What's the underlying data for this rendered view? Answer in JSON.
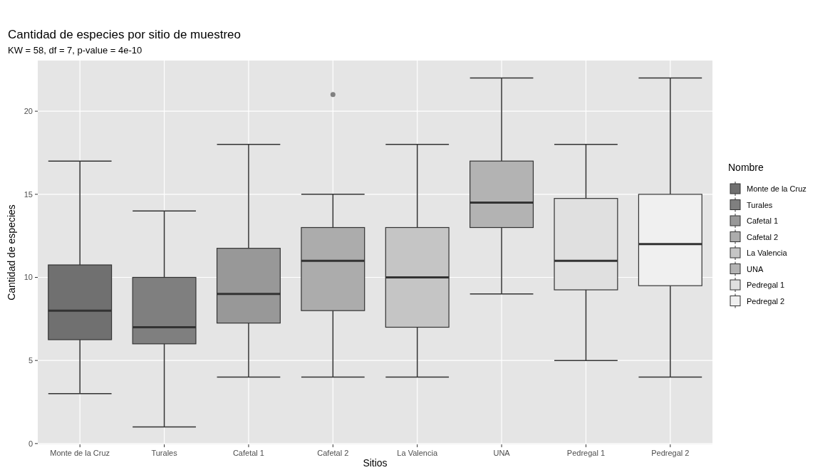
{
  "chart_data": {
    "type": "box",
    "title": "Cantidad de especies por sitio de muestreo",
    "subtitle": "KW = 58, df = 7, p-value = 4e-10",
    "xlabel": "Sitios",
    "ylabel": "Cantidad de especies",
    "legend_title": "Nombre",
    "categories": [
      "Monte de la Cruz",
      "Turales",
      "Cafetal 1",
      "Cafetal 2",
      "La Valencia",
      "UNA",
      "Pedregal 1",
      "Pedregal 2"
    ],
    "series": [
      {
        "name": "Monte de la Cruz",
        "color": "#707070",
        "boxes": [
          {
            "low": 3,
            "q1": 6.25,
            "median": 8,
            "q3": 10.75,
            "high": 17
          },
          null,
          null,
          null,
          null,
          null,
          null,
          null
        ]
      },
      {
        "name": "Turales",
        "color": "#7f7f7f",
        "boxes": [
          null,
          {
            "low": 1,
            "q1": 6,
            "median": 7,
            "q3": 10,
            "high": 14
          },
          null,
          null,
          null,
          null,
          null,
          null
        ]
      },
      {
        "name": "Cafetal 1",
        "color": "#989898",
        "boxes": [
          null,
          null,
          {
            "low": 4,
            "q1": 7.25,
            "median": 9,
            "q3": 11.75,
            "high": 18
          },
          null,
          null,
          null,
          null,
          null
        ]
      },
      {
        "name": "Cafetal 2",
        "color": "#acacac",
        "boxes": [
          null,
          null,
          null,
          {
            "low": 4,
            "q1": 8,
            "median": 11,
            "q3": 13,
            "high": 15,
            "outliers": [
              21
            ]
          },
          null,
          null,
          null,
          null
        ]
      },
      {
        "name": "La Valencia",
        "color": "#c5c5c5",
        "boxes": [
          null,
          null,
          null,
          null,
          {
            "low": 4,
            "q1": 7,
            "median": 10,
            "q3": 13,
            "high": 18
          },
          null,
          null,
          null
        ]
      },
      {
        "name": "UNA",
        "color": "#b3b3b3",
        "boxes": [
          null,
          null,
          null,
          null,
          null,
          {
            "low": 9,
            "q1": 13,
            "median": 14.5,
            "q3": 17,
            "high": 22
          },
          null,
          null
        ]
      },
      {
        "name": "Pedregal 1",
        "color": "#e0e0e0",
        "boxes": [
          null,
          null,
          null,
          null,
          null,
          null,
          {
            "low": 5,
            "q1": 9.25,
            "median": 11,
            "q3": 14.75,
            "high": 18
          },
          null
        ]
      },
      {
        "name": "Pedregal 2",
        "color": "#f0f0f0",
        "boxes": [
          null,
          null,
          null,
          null,
          null,
          null,
          null,
          {
            "low": 4,
            "q1": 9.5,
            "median": 12,
            "q3": 15,
            "high": 22
          }
        ]
      }
    ],
    "ylim": [
      -0.05,
      23.05
    ],
    "yticks": [
      0,
      5,
      10,
      15,
      20
    ],
    "grid": true,
    "legend": "right"
  }
}
